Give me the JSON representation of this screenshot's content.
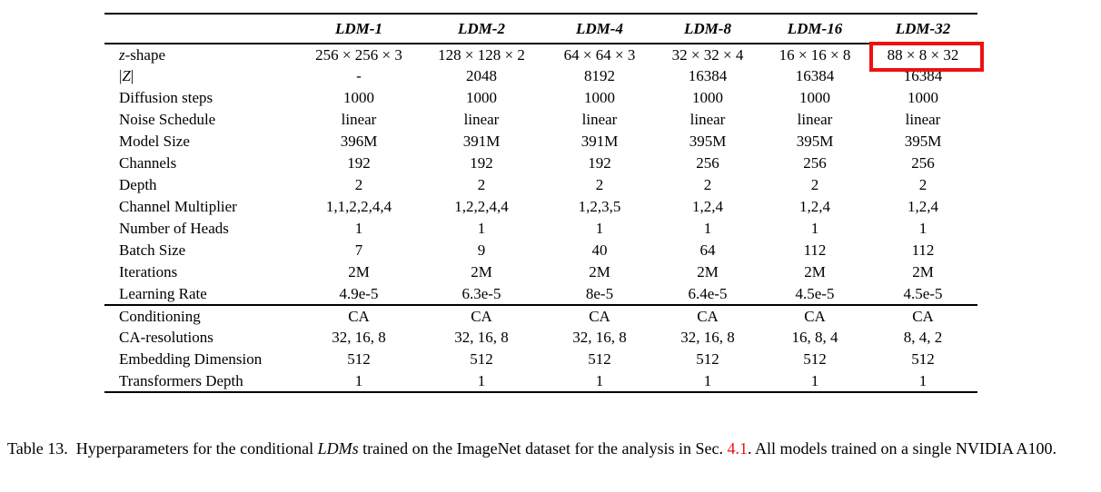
{
  "table": {
    "columns": [
      "LDM-1",
      "LDM-2",
      "LDM-4",
      "LDM-8",
      "LDM-16",
      "LDM-32"
    ],
    "sections": [
      {
        "rows": [
          {
            "label_parts": [
              {
                "t": "z",
                "i": true
              },
              {
                "t": "-shape"
              }
            ],
            "values": [
              "256 × 256 × 3",
              "128 × 128 × 2",
              "64 × 64 × 3",
              "32 × 32 × 4",
              "16 × 16 × 8",
              "88 × 8 × 32"
            ],
            "highlight": 5
          },
          {
            "label_parts": [
              {
                "t": "|"
              },
              {
                "t": "Z",
                "i": true
              },
              {
                "t": "|"
              }
            ],
            "values": [
              "-",
              "2048",
              "8192",
              "16384",
              "16384",
              "16384"
            ]
          },
          {
            "label_parts": [
              {
                "t": "Diffusion steps"
              }
            ],
            "values": [
              "1000",
              "1000",
              "1000",
              "1000",
              "1000",
              "1000"
            ]
          },
          {
            "label_parts": [
              {
                "t": "Noise Schedule"
              }
            ],
            "values": [
              "linear",
              "linear",
              "linear",
              "linear",
              "linear",
              "linear"
            ]
          },
          {
            "label_parts": [
              {
                "t": "Model Size"
              }
            ],
            "values": [
              "396M",
              "391M",
              "391M",
              "395M",
              "395M",
              "395M"
            ]
          },
          {
            "label_parts": [
              {
                "t": "Channels"
              }
            ],
            "values": [
              "192",
              "192",
              "192",
              "256",
              "256",
              "256"
            ]
          },
          {
            "label_parts": [
              {
                "t": "Depth"
              }
            ],
            "values": [
              "2",
              "2",
              "2",
              "2",
              "2",
              "2"
            ]
          },
          {
            "label_parts": [
              {
                "t": "Channel Multiplier"
              }
            ],
            "values": [
              "1,1,2,2,4,4",
              "1,2,2,4,4",
              "1,2,3,5",
              "1,2,4",
              "1,2,4",
              "1,2,4"
            ]
          },
          {
            "label_parts": [
              {
                "t": "Number of Heads"
              }
            ],
            "values": [
              "1",
              "1",
              "1",
              "1",
              "1",
              "1"
            ]
          },
          {
            "label_parts": [
              {
                "t": "Batch Size"
              }
            ],
            "values": [
              "7",
              "9",
              "40",
              "64",
              "112",
              "112"
            ]
          },
          {
            "label_parts": [
              {
                "t": "Iterations"
              }
            ],
            "values": [
              "2M",
              "2M",
              "2M",
              "2M",
              "2M",
              "2M"
            ]
          },
          {
            "label_parts": [
              {
                "t": "Learning Rate"
              }
            ],
            "values": [
              "4.9e-5",
              "6.3e-5",
              "8e-5",
              "6.4e-5",
              "4.5e-5",
              "4.5e-5"
            ]
          }
        ]
      },
      {
        "rows": [
          {
            "label_parts": [
              {
                "t": "Conditioning"
              }
            ],
            "values": [
              "CA",
              "CA",
              "CA",
              "CA",
              "CA",
              "CA"
            ]
          },
          {
            "label_parts": [
              {
                "t": "CA-resolutions"
              }
            ],
            "values": [
              "32, 16, 8",
              "32, 16, 8",
              "32, 16, 8",
              "32, 16, 8",
              "16, 8, 4",
              "8, 4, 2"
            ]
          },
          {
            "label_parts": [
              {
                "t": "Embedding Dimension"
              }
            ],
            "values": [
              "512",
              "512",
              "512",
              "512",
              "512",
              "512"
            ]
          },
          {
            "label_parts": [
              {
                "t": "Transformers Depth"
              }
            ],
            "values": [
              "1",
              "1",
              "1",
              "1",
              "1",
              "1"
            ]
          }
        ]
      }
    ]
  },
  "highlight": {
    "color": "#ee1111"
  },
  "caption": {
    "parts": [
      {
        "t": "Table 13.  Hyperparameters for the conditional "
      },
      {
        "t": "LDMs",
        "i": true
      },
      {
        "t": " trained on the ImageNet dataset for the analysis in Sec. "
      },
      {
        "t": "4.1",
        "link": true
      },
      {
        "t": ". All models trained on a single NVIDIA A100."
      }
    ],
    "link_color": "#ee1111"
  }
}
